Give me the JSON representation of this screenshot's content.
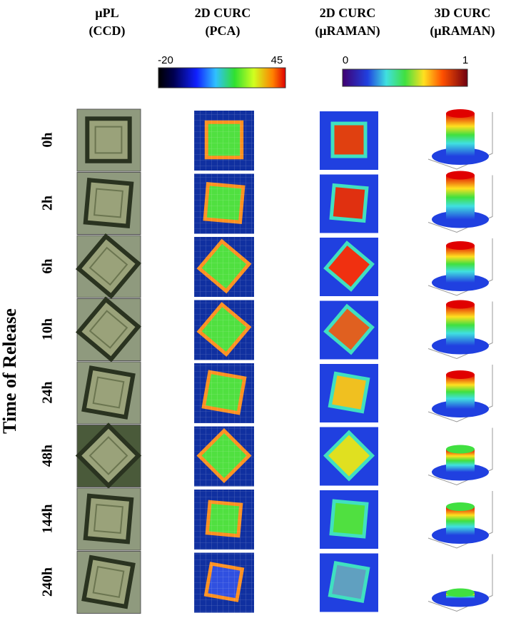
{
  "columns": [
    {
      "line1": "μPL",
      "line2": "(CCD)"
    },
    {
      "line1": "2D CURC",
      "line2": "(PCA)"
    },
    {
      "line1": "2D CURC",
      "line2": "(μRAMAN)"
    },
    {
      "line1": "3D CURC",
      "line2": "(μRAMAN)"
    }
  ],
  "colorbars": [
    {
      "min": "-20",
      "max": "45"
    },
    {
      "min": "0",
      "max": "1"
    }
  ],
  "y_label": "Time of Release",
  "rows": [
    "0h",
    "2h",
    "6h",
    "10h",
    "24h",
    "48h",
    "144h",
    "240h"
  ]
}
